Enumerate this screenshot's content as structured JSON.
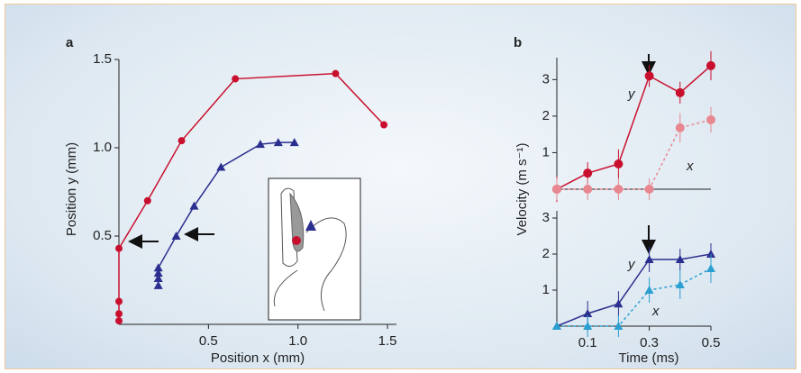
{
  "chart_data": [
    {
      "type": "line",
      "label": "a",
      "xlabel": "Position x (mm)",
      "ylabel": "Position y (mm)",
      "xlim": [
        0,
        1.55
      ],
      "ylim": [
        0,
        1.5
      ],
      "xticks": [
        0.5,
        {
          "value": 1,
          "label": "1.0"
        },
        1.5
      ],
      "yticks": [
        0.5,
        {
          "value": 1,
          "label": "1.0"
        },
        1.5
      ],
      "series": [
        {
          "color": "#c8102e",
          "marker": "circle",
          "x": [
            0,
            0,
            0,
            0,
            0.16,
            0.35,
            0.65,
            1.21,
            1.48
          ],
          "y": [
            0.02,
            0.06,
            0.13,
            0.43,
            0.7,
            1.04,
            1.39,
            1.42,
            1.13
          ]
        },
        {
          "color": "#2b2f8f",
          "marker": "triangle",
          "x": [
            0.22,
            0.22,
            0.22,
            0.22,
            0.32,
            0.42,
            0.57,
            0.79,
            0.89,
            0.98
          ],
          "y": [
            0.22,
            0.26,
            0.29,
            0.32,
            0.5,
            0.67,
            0.89,
            1.02,
            1.03,
            1.03
          ]
        }
      ]
    },
    {
      "type": "line",
      "label": "b",
      "ylabel": "Velocity (m s⁻¹)",
      "x": [
        0,
        0.1,
        0.2,
        0.3,
        0.4,
        0.5
      ],
      "xlim": [
        0,
        0.5
      ],
      "ylim": [
        0,
        3.6
      ],
      "yticks": [
        1,
        2,
        3
      ],
      "annotations": [
        "y",
        "x"
      ],
      "series": [
        {
          "color": "#c8102e",
          "marker": "circle",
          "dashed": false,
          "values": [
            0,
            0.44,
            0.69,
            3.1,
            2.64,
            3.38
          ],
          "errors": [
            0.35,
            0.3,
            0.4,
            0.3,
            0.3,
            0.4
          ]
        },
        {
          "color": "#e8878f",
          "marker": "circle",
          "dashed": true,
          "values": [
            0,
            0,
            0,
            0,
            1.68,
            1.9
          ],
          "errors": [
            0.3,
            0.3,
            0.3,
            0.3,
            0.4,
            0.35
          ]
        }
      ]
    },
    {
      "type": "line",
      "xlabel": "Time (ms)",
      "x": [
        0,
        0.1,
        0.2,
        0.3,
        0.4,
        0.5
      ],
      "xlim": [
        0,
        0.5
      ],
      "ylim": [
        0,
        3.2
      ],
      "yticks": [
        1,
        2,
        3
      ],
      "xticks": [
        0.1,
        0.3,
        0.5
      ],
      "annotations": [
        "y",
        "x"
      ],
      "series": [
        {
          "color": "#2b2f8f",
          "marker": "triangle",
          "dashed": false,
          "values": [
            0,
            0.35,
            0.62,
            1.85,
            1.85,
            2.0
          ],
          "errors": [
            0,
            0.35,
            0.35,
            0.35,
            0.3,
            0.3
          ]
        },
        {
          "color": "#2a9fd0",
          "marker": "triangle",
          "dashed": true,
          "values": [
            0,
            0,
            0,
            1.0,
            1.15,
            1.6
          ],
          "errors": [
            0,
            0.3,
            0.3,
            0.35,
            0.4,
            0.4
          ]
        }
      ]
    }
  ]
}
